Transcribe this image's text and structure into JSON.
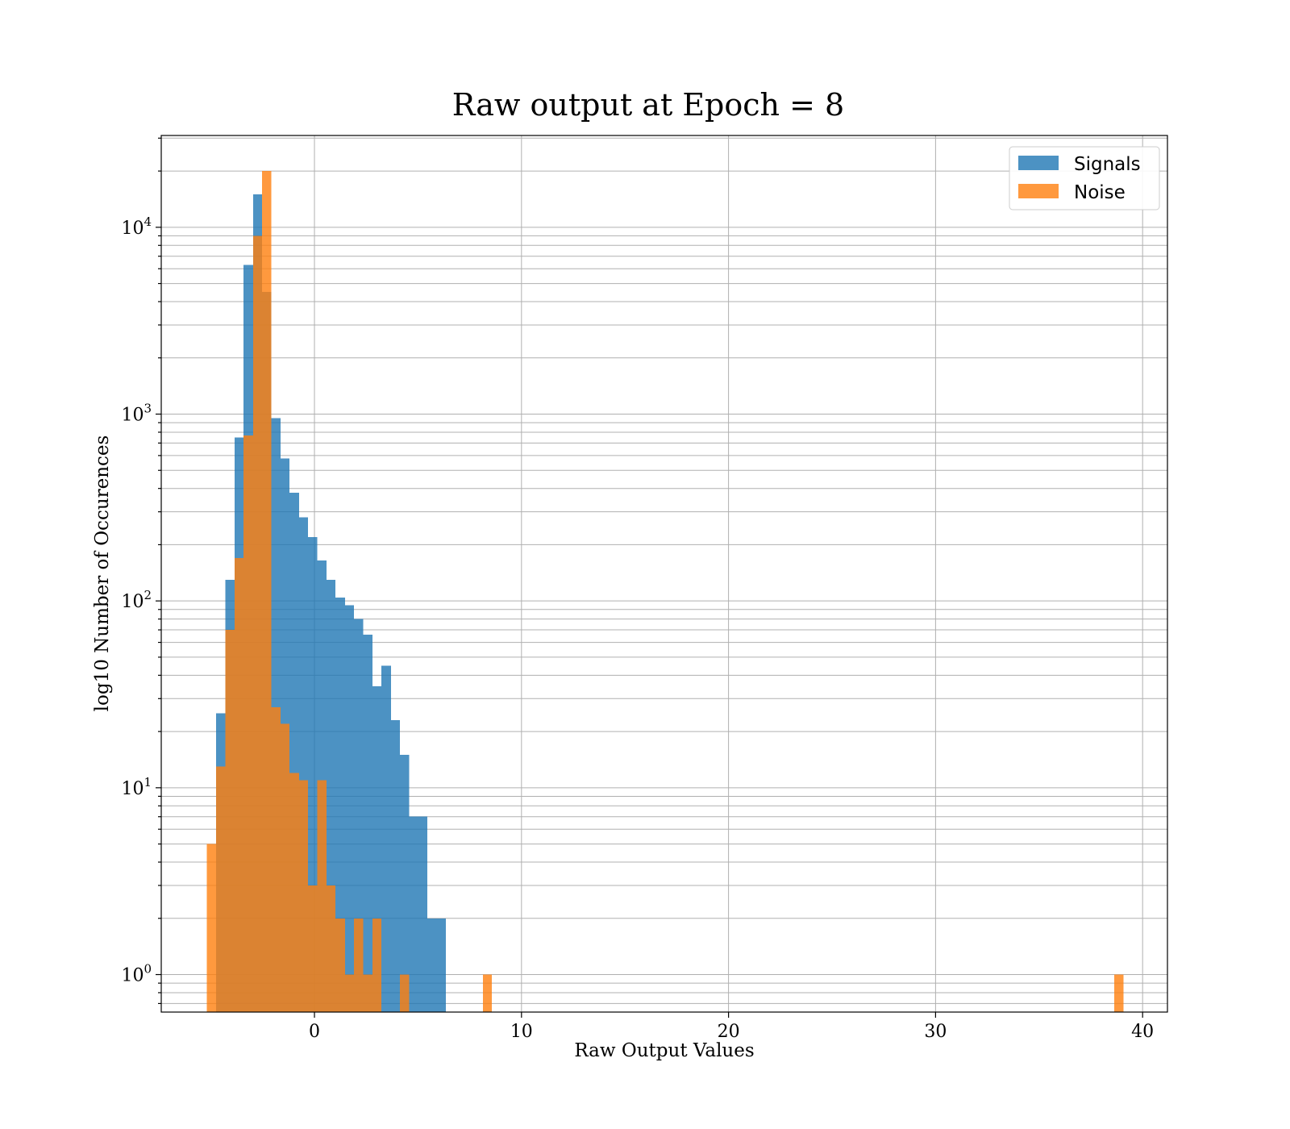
{
  "chart_data": {
    "type": "bar",
    "title": "Raw output at Epoch = 8",
    "xlabel": "Raw Output Values",
    "ylabel": "log10 Number of Occurences",
    "xlim": [
      -7.4,
      41.2
    ],
    "ylim": [
      0.63,
      31000
    ],
    "y_scale": "log",
    "grid": true,
    "legend_position": "top-right",
    "x_ticks": [
      0,
      10,
      20,
      30,
      40
    ],
    "y_ticks": [
      {
        "value": 1,
        "base": "10",
        "exp": "0"
      },
      {
        "value": 10,
        "base": "10",
        "exp": "1"
      },
      {
        "value": 100,
        "base": "10",
        "exp": "2"
      },
      {
        "value": 1000,
        "base": "10",
        "exp": "3"
      },
      {
        "value": 10000,
        "base": "10",
        "exp": "4"
      }
    ],
    "series": [
      {
        "name": "Signals",
        "color": "#1f77b4",
        "bin_edges": [
          -4.75,
          -4.31,
          -3.86,
          -3.42,
          -2.97,
          -2.53,
          -2.09,
          -1.64,
          -1.2,
          -0.75,
          -0.31,
          0.13,
          0.58,
          1.02,
          1.47,
          1.91,
          2.35,
          2.8,
          3.24,
          3.69,
          4.13,
          4.57,
          5.02,
          5.46,
          5.91,
          6.35
        ],
        "counts": [
          25,
          130,
          750,
          6300,
          15000,
          4500,
          950,
          580,
          380,
          280,
          220,
          165,
          130,
          104,
          95,
          80,
          66,
          35,
          45,
          23,
          15,
          7,
          7,
          2,
          2
        ]
      },
      {
        "name": "Noise",
        "color": "#ff7f0e",
        "bin_edges": [
          -5.2,
          -4.75,
          -4.31,
          -3.86,
          -3.42,
          -2.97,
          -2.53,
          -2.09,
          -1.64,
          -1.2,
          -0.75,
          -0.31,
          0.13,
          0.58,
          1.02,
          1.47,
          1.91,
          2.35,
          2.8,
          3.24,
          3.69,
          4.13,
          4.57,
          8.13,
          8.57,
          38.63,
          39.07
        ],
        "counts": [
          5,
          13,
          70,
          170,
          770,
          9000,
          20000,
          27,
          22,
          12,
          11,
          3,
          11,
          3,
          2,
          1,
          2,
          1,
          2,
          0,
          0,
          1,
          0,
          1,
          0,
          1
        ]
      }
    ]
  }
}
